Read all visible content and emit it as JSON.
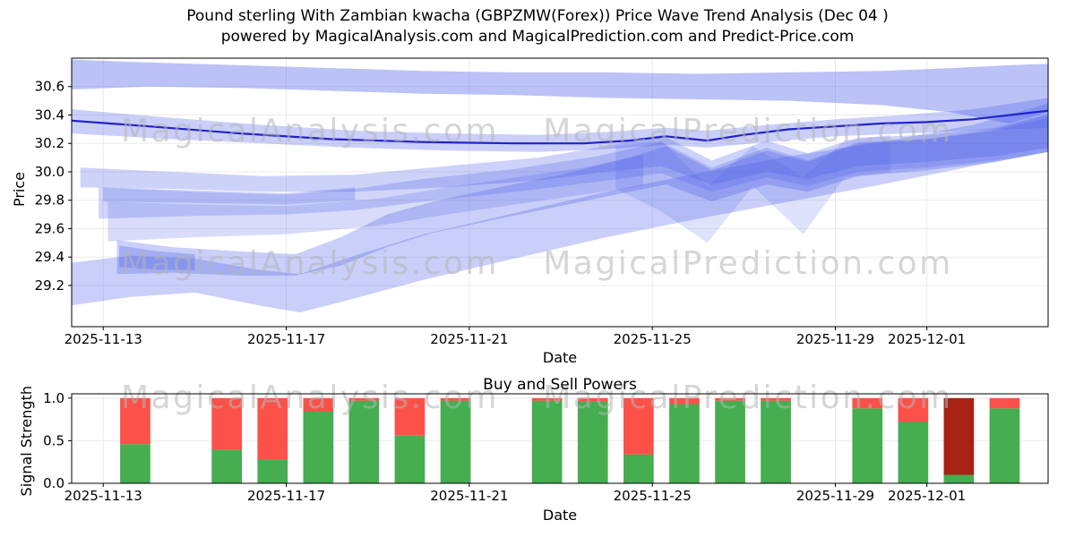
{
  "title": "Pound sterling With Zambian kwacha (GBPZMW(Forex)) Price Wave Trend Analysis (Dec 04 )",
  "subtitle": "powered by MagicalAnalysis.com and MagicalPrediction.com and Predict-Price.com",
  "watermarks": {
    "left": "MagicalAnalysis.com",
    "right": "MagicalPrediction.com"
  },
  "chart_data": [
    {
      "type": "area",
      "name": "price-wave-trend",
      "xlabel": "Date",
      "ylabel": "Price",
      "xlim": [
        -0.69,
        20.65
      ],
      "ylim": [
        28.91,
        30.8
      ],
      "x_epoch": "2025-11-13",
      "x_ticks": [
        {
          "day": 0,
          "label": "2025-11-13"
        },
        {
          "day": 4,
          "label": "2025-11-17"
        },
        {
          "day": 8,
          "label": "2025-11-21"
        },
        {
          "day": 12,
          "label": "2025-11-25"
        },
        {
          "day": 16,
          "label": "2025-11-29"
        },
        {
          "day": 18,
          "label": "2025-12-01"
        }
      ],
      "y_ticks": [
        29.2,
        29.4,
        29.6,
        29.8,
        30.0,
        30.2,
        30.4,
        30.6
      ],
      "band_color": "#4d5fe8",
      "line_color": "#2121cc",
      "bands": [
        {
          "name": "upper-envelope",
          "opacity": 0.38,
          "points": [
            [
              -0.69,
              30.58,
              30.79
            ],
            [
              1,
              30.6,
              30.77
            ],
            [
              3,
              30.59,
              30.75
            ],
            [
              5,
              30.57,
              30.73
            ],
            [
              7,
              30.55,
              30.71
            ],
            [
              9,
              30.54,
              30.7
            ],
            [
              11,
              30.52,
              30.7
            ],
            [
              13,
              30.51,
              30.69
            ],
            [
              15,
              30.5,
              30.7
            ],
            [
              17,
              30.47,
              30.71
            ],
            [
              18.5,
              30.42,
              30.73
            ],
            [
              19.8,
              30.34,
              30.75
            ],
            [
              20.65,
              30.42,
              30.76
            ]
          ]
        },
        {
          "name": "trend-channel",
          "opacity": 0.3,
          "points": [
            [
              -0.69,
              30.27,
              30.44
            ],
            [
              1.5,
              30.23,
              30.38
            ],
            [
              3.5,
              30.2,
              30.33
            ],
            [
              5.5,
              30.17,
              30.29
            ],
            [
              7.5,
              30.15,
              30.27
            ],
            [
              9.5,
              30.14,
              30.26
            ],
            [
              11,
              30.16,
              30.28
            ],
            [
              12.3,
              30.19,
              30.31
            ],
            [
              13.2,
              30.17,
              30.29
            ],
            [
              14.5,
              30.21,
              30.33
            ],
            [
              16,
              30.25,
              30.37
            ],
            [
              17.5,
              30.27,
              30.4
            ],
            [
              19,
              30.29,
              30.44
            ],
            [
              20.65,
              30.31,
              30.52
            ]
          ]
        },
        {
          "name": "mid-band-a",
          "opacity": 0.28,
          "points": [
            [
              -0.5,
              29.89,
              30.03
            ],
            [
              1.5,
              29.88,
              30.0
            ],
            [
              3.5,
              29.86,
              29.97
            ],
            [
              5.5,
              29.86,
              29.98
            ],
            [
              7.5,
              29.89,
              30.04
            ],
            [
              9.5,
              29.94,
              30.1
            ],
            [
              11,
              30.0,
              30.18
            ],
            [
              12.2,
              30.04,
              30.26
            ],
            [
              13.3,
              29.91,
              30.08
            ],
            [
              14.5,
              30.0,
              30.22
            ],
            [
              15.4,
              29.95,
              30.13
            ],
            [
              16.5,
              30.04,
              30.24
            ],
            [
              18,
              30.07,
              30.26
            ],
            [
              19.5,
              30.11,
              30.31
            ],
            [
              20.65,
              30.17,
              30.41
            ]
          ]
        },
        {
          "name": "mid-band-b",
          "opacity": 0.26,
          "points": [
            [
              -0.1,
              29.67,
              29.89
            ],
            [
              2,
              29.69,
              29.86
            ],
            [
              4,
              29.7,
              29.84
            ],
            [
              5.5,
              29.73,
              29.88
            ],
            [
              7,
              29.79,
              29.95
            ],
            [
              9,
              29.86,
              30.02
            ],
            [
              10.8,
              29.93,
              30.11
            ],
            [
              12.2,
              29.99,
              30.21
            ],
            [
              13.3,
              29.86,
              30.03
            ],
            [
              14.5,
              29.96,
              30.17
            ],
            [
              15.4,
              29.9,
              30.08
            ],
            [
              16.5,
              30.0,
              30.21
            ],
            [
              18,
              30.03,
              30.23
            ],
            [
              19.5,
              30.08,
              30.29
            ],
            [
              20.65,
              30.14,
              30.38
            ]
          ]
        },
        {
          "name": "mid-band-c",
          "opacity": 0.22,
          "points": [
            [
              0.1,
              29.51,
              29.79
            ],
            [
              2,
              29.54,
              29.77
            ],
            [
              4,
              29.56,
              29.76
            ],
            [
              6,
              29.62,
              29.81
            ],
            [
              7.5,
              29.7,
              29.89
            ],
            [
              9,
              29.77,
              29.96
            ],
            [
              10.5,
              29.84,
              30.03
            ],
            [
              11.8,
              29.9,
              30.12
            ]
          ]
        },
        {
          "name": "left-strip",
          "opacity": 0.25,
          "points": [
            [
              0.0,
              29.79,
              29.89
            ],
            [
              2,
              29.78,
              29.87
            ],
            [
              4,
              29.77,
              29.85
            ],
            [
              5.5,
              29.8,
              29.89
            ]
          ]
        },
        {
          "name": "left-blob",
          "opacity": 0.3,
          "points": [
            [
              0.35,
              29.33,
              29.48
            ],
            [
              1.2,
              29.31,
              29.44
            ],
            [
              2,
              29.31,
              29.42
            ]
          ]
        },
        {
          "name": "rising-band",
          "opacity": 0.3,
          "points": [
            [
              0.3,
              29.28,
              29.52
            ],
            [
              1.5,
              29.29,
              29.47
            ],
            [
              3,
              29.27,
              29.44
            ],
            [
              4.2,
              29.27,
              29.42
            ],
            [
              5.2,
              29.34,
              29.54
            ],
            [
              6.2,
              29.47,
              29.7
            ],
            [
              7.2,
              29.57,
              29.79
            ],
            [
              8.5,
              29.66,
              29.88
            ],
            [
              10,
              29.76,
              29.98
            ],
            [
              11.5,
              29.86,
              30.1
            ],
            [
              12.3,
              29.91,
              30.18
            ],
            [
              13.3,
              29.79,
              30.01
            ],
            [
              14.5,
              29.91,
              30.15
            ],
            [
              15.4,
              29.86,
              30.07
            ],
            [
              16.5,
              29.97,
              30.2
            ],
            [
              18,
              30.01,
              30.23
            ],
            [
              19.5,
              30.07,
              30.3
            ],
            [
              20.65,
              30.14,
              30.4
            ]
          ]
        },
        {
          "name": "lower-envelope",
          "opacity": 0.3,
          "points": [
            [
              -0.69,
              29.06,
              29.36
            ],
            [
              0.6,
              29.12,
              29.41
            ],
            [
              2,
              29.15,
              29.39
            ],
            [
              3.4,
              29.06,
              29.31
            ],
            [
              4.3,
              29.01,
              29.28
            ],
            [
              5.5,
              29.11,
              29.41
            ],
            [
              7,
              29.24,
              29.56
            ],
            [
              9,
              29.39,
              29.71
            ],
            [
              11,
              29.54,
              29.86
            ],
            [
              13,
              29.67,
              29.99
            ],
            [
              15,
              29.79,
              30.11
            ],
            [
              17,
              29.91,
              30.21
            ],
            [
              19,
              30.04,
              30.33
            ],
            [
              20.65,
              30.14,
              30.48
            ]
          ]
        },
        {
          "name": "oscillation-band",
          "opacity": 0.18,
          "points": [
            [
              11.2,
              29.88,
              30.18
            ],
            [
              12.2,
              29.72,
              30.22
            ],
            [
              13.2,
              29.5,
              29.9
            ],
            [
              14.2,
              29.9,
              30.18
            ],
            [
              15.3,
              29.56,
              29.96
            ],
            [
              16.2,
              29.96,
              30.22
            ],
            [
              17.2,
              30.0,
              30.26
            ]
          ]
        }
      ],
      "trend_line": {
        "points": [
          [
            -0.69,
            30.36
          ],
          [
            1,
            30.32
          ],
          [
            3,
            30.27
          ],
          [
            5,
            30.23
          ],
          [
            7,
            30.21
          ],
          [
            9,
            30.2
          ],
          [
            10.5,
            30.2
          ],
          [
            11.5,
            30.22
          ],
          [
            12.3,
            30.25
          ],
          [
            13.2,
            30.22
          ],
          [
            14,
            30.26
          ],
          [
            15,
            30.3
          ],
          [
            16,
            30.32
          ],
          [
            17,
            30.34
          ],
          [
            18,
            30.35
          ],
          [
            19,
            30.37
          ],
          [
            20.65,
            30.43
          ]
        ]
      }
    },
    {
      "type": "bar",
      "name": "buy-sell-powers",
      "title": "Buy and Sell Powers",
      "xlabel": "Date",
      "ylabel": "Signal Strength",
      "ylim": [
        0,
        1.05
      ],
      "y_ticks": [
        0.0,
        0.5,
        1.0
      ],
      "x_ticks": [
        {
          "day": 0,
          "label": "2025-11-13"
        },
        {
          "day": 4,
          "label": "2025-11-17"
        },
        {
          "day": 8,
          "label": "2025-11-21"
        },
        {
          "day": 12,
          "label": "2025-11-25"
        },
        {
          "day": 16,
          "label": "2025-11-29"
        },
        {
          "day": 18,
          "label": "2025-12-01"
        }
      ],
      "colors": {
        "buy": "#46ad51",
        "sell": "#fb5149",
        "sell_dark": "#a82315"
      },
      "bars": [
        {
          "date": "2025-11-14",
          "day": 1,
          "buy": 0.46,
          "sell": 0.54,
          "variant": "normal"
        },
        {
          "date": "2025-11-16",
          "day": 3,
          "buy": 0.39,
          "sell": 0.61,
          "variant": "normal"
        },
        {
          "date": "2025-11-17",
          "day": 4,
          "buy": 0.28,
          "sell": 0.72,
          "variant": "normal"
        },
        {
          "date": "2025-11-18",
          "day": 5,
          "buy": 0.84,
          "sell": 0.16,
          "variant": "normal"
        },
        {
          "date": "2025-11-19",
          "day": 6,
          "buy": 0.97,
          "sell": 0.03,
          "variant": "normal"
        },
        {
          "date": "2025-11-20",
          "day": 7,
          "buy": 0.56,
          "sell": 0.44,
          "variant": "normal"
        },
        {
          "date": "2025-11-21",
          "day": 8,
          "buy": 0.97,
          "sell": 0.03,
          "variant": "normal"
        },
        {
          "date": "2025-11-23",
          "day": 10,
          "buy": 0.97,
          "sell": 0.03,
          "variant": "normal"
        },
        {
          "date": "2025-11-24",
          "day": 11,
          "buy": 0.96,
          "sell": 0.04,
          "variant": "normal"
        },
        {
          "date": "2025-11-25",
          "day": 12,
          "buy": 0.34,
          "sell": 0.66,
          "variant": "normal"
        },
        {
          "date": "2025-11-26",
          "day": 13,
          "buy": 0.93,
          "sell": 0.07,
          "variant": "normal"
        },
        {
          "date": "2025-11-27",
          "day": 14,
          "buy": 0.97,
          "sell": 0.03,
          "variant": "normal"
        },
        {
          "date": "2025-11-28",
          "day": 15,
          "buy": 0.97,
          "sell": 0.03,
          "variant": "normal"
        },
        {
          "date": "2025-11-30",
          "day": 17,
          "buy": 0.88,
          "sell": 0.12,
          "variant": "normal"
        },
        {
          "date": "2025-12-01",
          "day": 18,
          "buy": 0.72,
          "sell": 0.28,
          "variant": "normal"
        },
        {
          "date": "2025-12-02",
          "day": 19,
          "buy": 0.1,
          "sell": 0.9,
          "variant": "dark"
        },
        {
          "date": "2025-12-03",
          "day": 20,
          "buy": 0.88,
          "sell": 0.12,
          "variant": "normal"
        }
      ]
    }
  ]
}
